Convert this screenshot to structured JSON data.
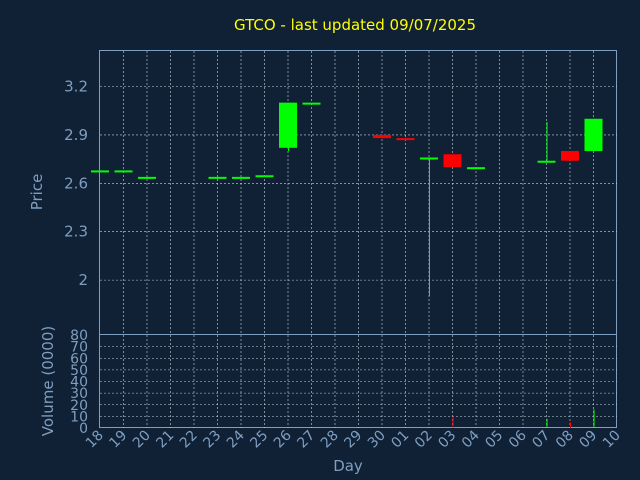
{
  "chart_data": [
    {
      "type": "candlestick",
      "title": "GTCO - last updated 09/07/2025",
      "ylabel": "Price",
      "ylim": [
        1.66,
        3.42
      ],
      "yticks": [
        2,
        2.3,
        2.6,
        2.9,
        3.2
      ],
      "ytick_labels": [
        "2",
        "2.3",
        "2.6",
        "2.9",
        "3.2"
      ],
      "grid": true,
      "x": [
        "18",
        "19",
        "20",
        "21",
        "22",
        "23",
        "24",
        "25",
        "26",
        "27",
        "28",
        "29",
        "30",
        "01",
        "02",
        "03",
        "04",
        "05",
        "06",
        "07",
        "08",
        "09",
        "10"
      ],
      "candles": [
        {
          "x": "18",
          "open": 2.68,
          "high": 2.68,
          "low": 2.68,
          "close": 2.68
        },
        {
          "x": "19",
          "open": 2.68,
          "high": 2.68,
          "low": 2.68,
          "close": 2.68
        },
        {
          "x": "20",
          "open": 2.64,
          "high": 2.64,
          "low": 2.64,
          "close": 2.64
        },
        {
          "x": "23",
          "open": 2.64,
          "high": 2.64,
          "low": 2.64,
          "close": 2.64
        },
        {
          "x": "24",
          "open": 2.64,
          "high": 2.64,
          "low": 2.64,
          "close": 2.64
        },
        {
          "x": "25",
          "open": 2.65,
          "high": 2.65,
          "low": 2.65,
          "close": 2.65
        },
        {
          "x": "26",
          "open": 2.82,
          "high": 3.1,
          "low": 2.8,
          "close": 3.1
        },
        {
          "x": "27",
          "open": 3.1,
          "high": 3.1,
          "low": 3.1,
          "close": 3.1
        },
        {
          "x": "30",
          "open": 2.9,
          "high": 2.9,
          "low": 2.88,
          "close": 2.88
        },
        {
          "x": "01",
          "open": 2.88,
          "high": 2.88,
          "low": 2.87,
          "close": 2.87
        },
        {
          "x": "02",
          "open": 2.76,
          "high": 2.76,
          "low": 1.9,
          "close": 2.76
        },
        {
          "x": "03",
          "open": 2.78,
          "high": 2.78,
          "low": 2.7,
          "close": 2.7
        },
        {
          "x": "04",
          "open": 2.7,
          "high": 2.7,
          "low": 2.7,
          "close": 2.7
        },
        {
          "x": "07",
          "open": 2.74,
          "high": 2.98,
          "low": 2.74,
          "close": 2.74
        },
        {
          "x": "08",
          "open": 2.8,
          "high": 2.8,
          "low": 2.74,
          "close": 2.74
        },
        {
          "x": "09",
          "open": 2.8,
          "high": 3.0,
          "low": 2.8,
          "close": 3.0
        }
      ],
      "colors": {
        "up": "#00ff00",
        "down": "#ff0000"
      }
    },
    {
      "type": "bar",
      "ylabel": "Volume (0000)",
      "xlabel": "Day",
      "ylim": [
        0,
        80
      ],
      "yticks": [
        0,
        10,
        20,
        30,
        40,
        50,
        60,
        70,
        80
      ],
      "ytick_labels": [
        "0",
        "10",
        "20",
        "30",
        "40",
        "50",
        "60",
        "70",
        "80"
      ],
      "grid": true,
      "x": [
        "18",
        "19",
        "20",
        "21",
        "22",
        "23",
        "24",
        "25",
        "26",
        "27",
        "28",
        "29",
        "30",
        "01",
        "02",
        "03",
        "04",
        "05",
        "06",
        "07",
        "08",
        "09",
        "10"
      ],
      "volumes": [
        {
          "x": "03",
          "value": 10,
          "direction": "down"
        },
        {
          "x": "07",
          "value": 8,
          "direction": "up"
        },
        {
          "x": "08",
          "value": 5,
          "direction": "down"
        },
        {
          "x": "09",
          "value": 16,
          "direction": "up"
        }
      ]
    }
  ]
}
